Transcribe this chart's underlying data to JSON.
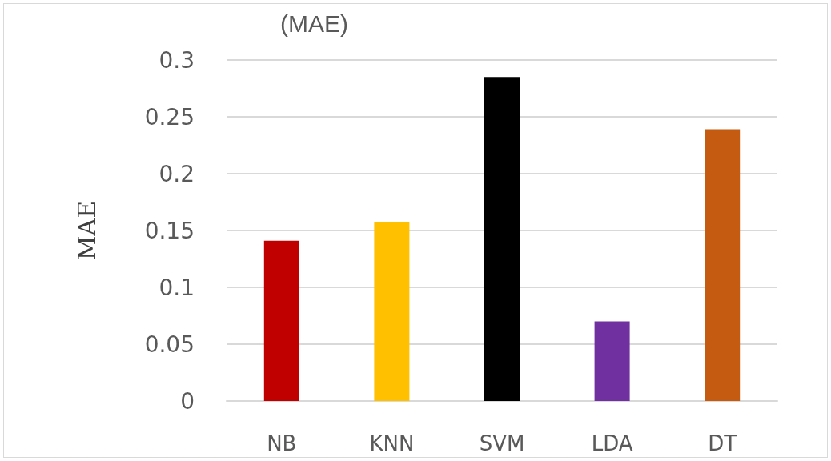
{
  "chart_data": {
    "type": "bar",
    "title": "(MAE)",
    "ylabel": "MAE",
    "categories": [
      "NB",
      "KNN",
      "SVM",
      "LDA",
      "DT"
    ],
    "values": [
      0.141,
      0.157,
      0.285,
      0.07,
      0.239
    ],
    "colors": [
      "#c00000",
      "#ffc000",
      "#000000",
      "#7030a0",
      "#c55a11"
    ],
    "ylim": [
      0,
      0.3
    ],
    "yticks": [
      0,
      0.05,
      0.1,
      0.15,
      0.2,
      0.25,
      0.3
    ],
    "grid": "y"
  }
}
